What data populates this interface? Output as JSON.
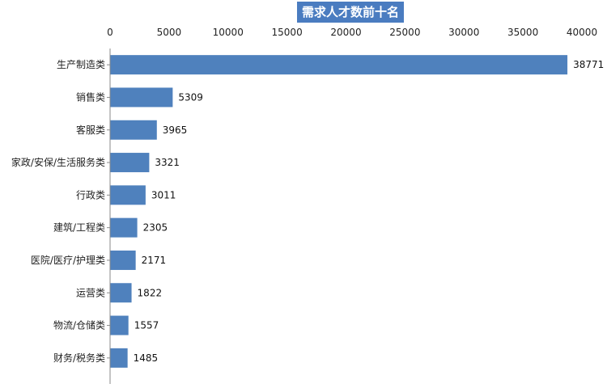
{
  "chart_data": {
    "type": "bar",
    "orientation": "horizontal",
    "title": "需求人才数前十名",
    "categories": [
      "生产制造类",
      "销售类",
      "客服类",
      "家政/安保/生活服务类",
      "行政类",
      "建筑/工程类",
      "医院/医疗/护理类",
      "运营类",
      "物流/仓储类",
      "财务/税务类"
    ],
    "values": [
      38771,
      5309,
      3965,
      3321,
      3011,
      2305,
      2171,
      1822,
      1557,
      1485
    ],
    "xlim": [
      0,
      40000
    ],
    "x_ticks": [
      "0",
      "5000",
      "10000",
      "15000",
      "20000",
      "25000",
      "30000",
      "35000",
      "40000"
    ],
    "x_axis_position": "top",
    "grid": false,
    "data_labels": true,
    "bar_color": "#4f81bd",
    "title_background": "#4a7cc0"
  }
}
